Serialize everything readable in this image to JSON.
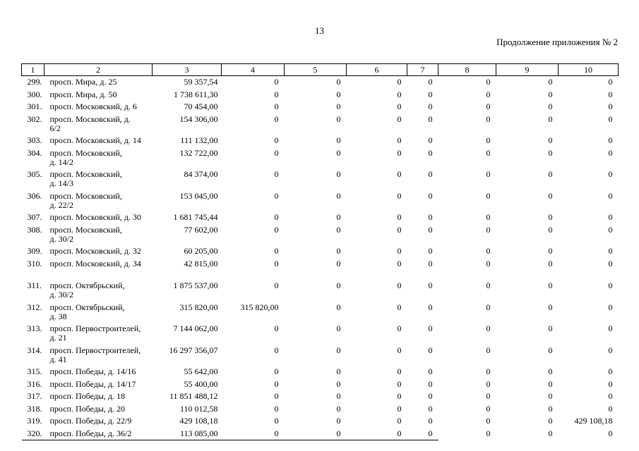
{
  "page": {
    "number": "13",
    "continuation_note": "Продолжение приложения № 2"
  },
  "table": {
    "column_headers": [
      "1",
      "2",
      "3",
      "4",
      "5",
      "6",
      "7",
      "8",
      "9",
      "10"
    ],
    "rows": [
      {
        "num": "299.",
        "address_lines": [
          "просп. Мира, д. 25"
        ],
        "amount": "59 357,54",
        "values": [
          "0",
          "0",
          "0",
          "0",
          "0",
          "0",
          "0"
        ]
      },
      {
        "num": "300.",
        "address_lines": [
          "просп. Мира, д. 50"
        ],
        "amount": "1 738 611,30",
        "values": [
          "0",
          "0",
          "0",
          "0",
          "0",
          "0",
          "0"
        ]
      },
      {
        "num": "301.",
        "address_lines": [
          "просп. Московский, д. 6"
        ],
        "amount": "70 454,00",
        "values": [
          "0",
          "0",
          "0",
          "0",
          "0",
          "0",
          "0"
        ]
      },
      {
        "num": "302.",
        "address_lines": [
          "просп. Московский, д.",
          "6/2"
        ],
        "amount": "154 306,00",
        "values": [
          "0",
          "0",
          "0",
          "0",
          "0",
          "0",
          "0"
        ]
      },
      {
        "num": "303.",
        "address_lines": [
          "просп. Московский, д. 14"
        ],
        "amount": "111 132,00",
        "values": [
          "0",
          "0",
          "0",
          "0",
          "0",
          "0",
          "0"
        ]
      },
      {
        "num": "304.",
        "address_lines": [
          "просп. Московский,",
          "д. 14/2"
        ],
        "amount": "132 722,00",
        "values": [
          "0",
          "0",
          "0",
          "0",
          "0",
          "0",
          "0"
        ]
      },
      {
        "num": "305.",
        "address_lines": [
          "просп. Московский,",
          "д. 14/3"
        ],
        "amount": "84 374,00",
        "values": [
          "0",
          "0",
          "0",
          "0",
          "0",
          "0",
          "0"
        ]
      },
      {
        "num": "306.",
        "address_lines": [
          "просп. Московский,",
          "д. 22/2"
        ],
        "amount": "153 045,00",
        "values": [
          "0",
          "0",
          "0",
          "0",
          "0",
          "0",
          "0"
        ]
      },
      {
        "num": "307.",
        "address_lines": [
          "просп. Московский, д. 30"
        ],
        "amount": "1 681 745,44",
        "values": [
          "0",
          "0",
          "0",
          "0",
          "0",
          "0",
          "0"
        ]
      },
      {
        "num": "308.",
        "address_lines": [
          "просп. Московский,",
          "д. 30/2"
        ],
        "amount": "77 602,00",
        "values": [
          "0",
          "0",
          "0",
          "0",
          "0",
          "0",
          "0"
        ]
      },
      {
        "num": "309.",
        "address_lines": [
          "просп. Московский, д. 32"
        ],
        "amount": "60 205,00",
        "values": [
          "0",
          "0",
          "0",
          "0",
          "0",
          "0",
          "0"
        ]
      },
      {
        "num": "310.",
        "address_lines": [
          "просп. Московский, д. 34"
        ],
        "amount": "42 815,00",
        "values": [
          "0",
          "0",
          "0",
          "0",
          "0",
          "0",
          "0"
        ]
      },
      {
        "num": "311.",
        "gap_before": true,
        "address_lines": [
          "просп. Октябрьский,",
          "д. 30/2"
        ],
        "amount": "1 875 537,00",
        "values": [
          "0",
          "0",
          "0",
          "0",
          "0",
          "0",
          "0"
        ]
      },
      {
        "num": "312.",
        "address_lines": [
          "просп. Октябрьский,",
          "д. 38"
        ],
        "amount": "315 820,00",
        "values": [
          "315 820,00",
          "0",
          "0",
          "0",
          "0",
          "0",
          "0"
        ]
      },
      {
        "num": "313.",
        "address_lines": [
          "просп. Первостроителей,",
          "д. 21"
        ],
        "amount": "7 144 062,00",
        "values": [
          "0",
          "0",
          "0",
          "0",
          "0",
          "0",
          "0"
        ]
      },
      {
        "num": "314.",
        "address_lines": [
          "просп. Первостроителей,",
          "д. 41"
        ],
        "amount": "16 297 356,07",
        "values": [
          "0",
          "0",
          "0",
          "0",
          "0",
          "0",
          "0"
        ]
      },
      {
        "num": "315.",
        "address_lines": [
          "просп. Победы, д. 14/16"
        ],
        "amount": "55 642,00",
        "values": [
          "0",
          "0",
          "0",
          "0",
          "0",
          "0",
          "0"
        ]
      },
      {
        "num": "316.",
        "address_lines": [
          "просп. Победы, д. 14/17"
        ],
        "amount": "55 400,00",
        "values": [
          "0",
          "0",
          "0",
          "0",
          "0",
          "0",
          "0"
        ]
      },
      {
        "num": "317.",
        "address_lines": [
          "просп. Победы, д. 18"
        ],
        "amount": "11 851 488,12",
        "values": [
          "0",
          "0",
          "0",
          "0",
          "0",
          "0",
          "0"
        ]
      },
      {
        "num": "318.",
        "address_lines": [
          "просп. Победы, д. 20"
        ],
        "amount": "110 012,58",
        "values": [
          "0",
          "0",
          "0",
          "0",
          "0",
          "0",
          "0"
        ]
      },
      {
        "num": "319.",
        "address_lines": [
          "просп. Победы, д. 22/9"
        ],
        "amount": "429 108,18",
        "values": [
          "0",
          "0",
          "0",
          "0",
          "0",
          "0",
          "429 108,18"
        ]
      },
      {
        "num": "320.",
        "address_lines": [
          "просп. Победы, д. 36/2"
        ],
        "amount": "113 085,00",
        "values": [
          "0",
          "0",
          "0",
          "0",
          "0",
          "0",
          "0"
        ]
      }
    ]
  }
}
